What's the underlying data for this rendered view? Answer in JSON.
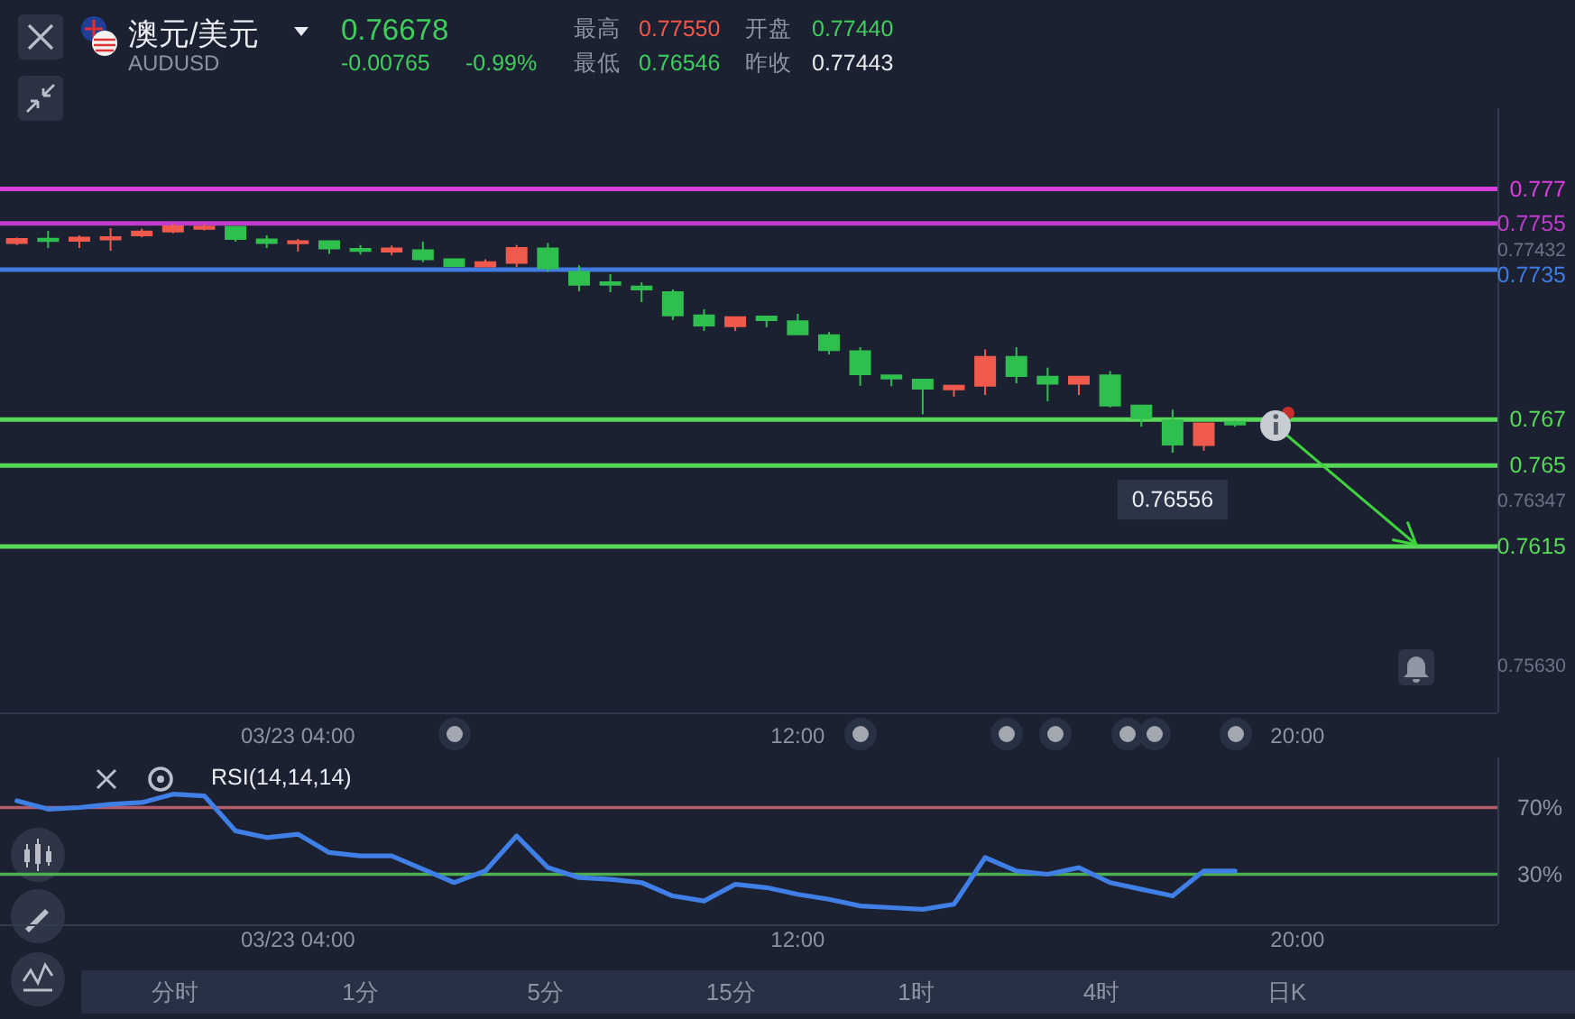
{
  "chart_data": [
    {
      "type": "candlestick",
      "title": "澳元/美元",
      "subtitle": "AUDUSD",
      "x": [
        -0.5,
        0,
        0.5,
        1,
        1.5,
        2,
        2.5,
        3,
        3.5,
        4,
        4.5,
        5,
        5.5,
        6,
        6.5,
        7,
        7.5,
        8,
        8.5,
        9,
        9.5,
        10,
        10.5,
        11,
        11.5,
        12,
        12.5,
        13,
        13.5,
        14,
        14.5,
        15,
        15.5,
        16,
        16.5,
        17,
        17.5,
        18,
        18.5,
        19
      ],
      "ohlc": [
        [
          0.77465,
          0.77489,
          0.77457,
          0.77483
        ],
        [
          0.77483,
          0.77518,
          0.77444,
          0.77475
        ],
        [
          0.77475,
          0.77499,
          0.77444,
          0.77489
        ],
        [
          0.77481,
          0.7753,
          0.77432,
          0.77491
        ],
        [
          0.77499,
          0.77528,
          0.77491,
          0.77515
        ],
        [
          0.77515,
          0.7755,
          0.77507,
          0.77538
        ],
        [
          0.77528,
          0.77547,
          0.7752,
          0.77536
        ],
        [
          0.77536,
          0.77538,
          0.77471,
          0.77483
        ],
        [
          0.77481,
          0.77499,
          0.77444,
          0.77465
        ],
        [
          0.77465,
          0.77483,
          0.77428,
          0.77473
        ],
        [
          0.77473,
          0.77473,
          0.77418,
          0.77442
        ],
        [
          0.77439,
          0.77457,
          0.77416,
          0.77432
        ],
        [
          0.77428,
          0.77455,
          0.77413,
          0.77442
        ],
        [
          0.77434,
          0.77471,
          0.77382,
          0.77395
        ],
        [
          0.77395,
          0.77395,
          0.77366,
          0.77366
        ],
        [
          0.77364,
          0.77395,
          0.77364,
          0.77382
        ],
        [
          0.77379,
          0.77457,
          0.77361,
          0.77444
        ],
        [
          0.77442,
          0.77465,
          0.7734,
          0.77356
        ],
        [
          0.7734,
          0.77369,
          0.77256,
          0.77285
        ],
        [
          0.77295,
          0.7733,
          0.77252,
          0.77285
        ],
        [
          0.77277,
          0.77295,
          0.77209,
          0.77264
        ],
        [
          0.77252,
          0.77264,
          0.77131,
          0.77152
        ],
        [
          0.77152,
          0.77178,
          0.77084,
          0.77108
        ],
        [
          0.77105,
          0.77144,
          0.77084,
          0.77144
        ],
        [
          0.77147,
          0.77147,
          0.771,
          0.77131
        ],
        [
          0.77126,
          0.77158,
          0.77069,
          0.77069
        ],
        [
          0.77066,
          0.77079,
          0.76982,
          0.77001
        ],
        [
          0.76996,
          0.77014,
          0.76847,
          0.76896
        ],
        [
          0.76892,
          0.76892,
          0.76845,
          0.76878
        ],
        [
          0.76873,
          0.76873,
          0.76722,
          0.76834
        ],
        [
          0.76831,
          0.76847,
          0.768,
          0.76847
        ],
        [
          0.76847,
          0.77004,
          0.76806,
          0.76972
        ],
        [
          0.76972,
          0.77014,
          0.76857,
          0.76889
        ],
        [
          0.76886,
          0.76925,
          0.76779,
          0.76855
        ],
        [
          0.76855,
          0.76886,
          0.76806,
          0.76886
        ],
        [
          0.76892,
          0.7691,
          0.76753,
          0.76761
        ],
        [
          0.76761,
          0.76761,
          0.76669,
          0.76706
        ],
        [
          0.76696,
          0.76743,
          0.76556,
          0.76591
        ],
        [
          0.76589,
          0.76683,
          0.76565,
          0.76683
        ],
        [
          0.76688,
          0.76696,
          0.76669,
          0.76678
        ]
      ],
      "colors": [
        "#ef5a4c",
        "#2fbf4f",
        "#ef5a4c",
        "#ef5a4c",
        "#ef5a4c",
        "#ef5a4c",
        "#ef5a4c",
        "#2fbf4f",
        "#2fbf4f",
        "#ef5a4c",
        "#2fbf4f",
        "#2fbf4f",
        "#ef5a4c",
        "#2fbf4f",
        "#2fbf4f",
        "#ef5a4c",
        "#ef5a4c",
        "#2fbf4f",
        "#2fbf4f",
        "#2fbf4f",
        "#2fbf4f",
        "#2fbf4f",
        "#2fbf4f",
        "#ef5a4c",
        "#2fbf4f",
        "#2fbf4f",
        "#2fbf4f",
        "#2fbf4f",
        "#2fbf4f",
        "#2fbf4f",
        "#ef5a4c",
        "#ef5a4c",
        "#2fbf4f",
        "#2fbf4f",
        "#ef5a4c",
        "#2fbf4f",
        "#2fbf4f",
        "#2fbf4f",
        "#ef5a4c",
        "#2fbf4f"
      ],
      "xlim": [
        -0.77,
        23.2
      ],
      "xticks": [
        {
          "value": 4,
          "label": "03/23 04:00"
        },
        {
          "value": 12,
          "label": "12:00"
        },
        {
          "value": 20,
          "label": "20:00"
        }
      ],
      "ylim": [
        0.7543,
        0.7805
      ],
      "yticks": [
        0.77432,
        0.76347,
        {
          "value": 0.7563,
          "label": "0.75630"
        }
      ],
      "ref_lines": [
        {
          "axis": "y",
          "value": 0.777,
          "label": "0.777",
          "color": "#d93fdc"
        },
        {
          "axis": "y",
          "value": 0.7755,
          "label": "0.7755",
          "color": "#c13ccc"
        },
        {
          "axis": "y",
          "value": 0.7735,
          "label": "0.7735",
          "color": "#3f7be0"
        },
        {
          "axis": "y",
          "value": 0.767,
          "label": "0.767",
          "color": "#58d858"
        },
        {
          "axis": "y",
          "value": 0.765,
          "label": "0.765",
          "color": "#58d858"
        },
        {
          "axis": "y",
          "value": 0.7615,
          "label": "0.7615",
          "color": "#58d858"
        }
      ],
      "annotations": [
        "0.76678",
        "-0.00765",
        "-0.99%",
        "最高",
        "0.77550",
        "开盘",
        "0.77440",
        "最低",
        "0.76546",
        "昨收",
        "0.77443",
        {
          "text": "0.76556",
          "x": 18,
          "y": 0.76556
        }
      ]
    },
    {
      "type": "line",
      "title": "RSI(14,14,14)",
      "x": [
        -0.5,
        0,
        0.5,
        1,
        1.5,
        2,
        2.5,
        3,
        3.5,
        4,
        4.5,
        5,
        5.5,
        6,
        6.5,
        7,
        7.5,
        8,
        8.5,
        9,
        9.5,
        10,
        10.5,
        11,
        11.5,
        12,
        12.5,
        13,
        13.5,
        14,
        14.5,
        15,
        15.5,
        16,
        16.5,
        17,
        17.5,
        18,
        18.5,
        19
      ],
      "series": [
        {
          "color": "#3f7fe6",
          "values": [
            74,
            69,
            70,
            72,
            73,
            78,
            77,
            56,
            52,
            54,
            43,
            41,
            41,
            33,
            25,
            32,
            53,
            34,
            28,
            27,
            25,
            17,
            14,
            24,
            22,
            18,
            15,
            11,
            10,
            9,
            12,
            40,
            32,
            30,
            34,
            25,
            21,
            17,
            32,
            32
          ]
        }
      ],
      "xlim": [
        -0.77,
        23.2
      ],
      "xticks": [
        {
          "value": 4,
          "label": "03/23 04:00"
        },
        {
          "value": 12,
          "label": "12:00"
        },
        {
          "value": 20,
          "label": "20:00"
        }
      ],
      "ylim": [
        0,
        100
      ],
      "tick_labels": "x",
      "ref_lines": [
        {
          "axis": "y",
          "value": 70,
          "label": "70%",
          "color": "#b35d6b"
        },
        {
          "axis": "y",
          "value": 30,
          "label": "30%",
          "color": "#4caf50"
        }
      ]
    },
    {
      "type": "other",
      "annotations": [
        "分时",
        "1分",
        "5分",
        "15分",
        "1时",
        "4时",
        "日K"
      ]
    }
  ]
}
